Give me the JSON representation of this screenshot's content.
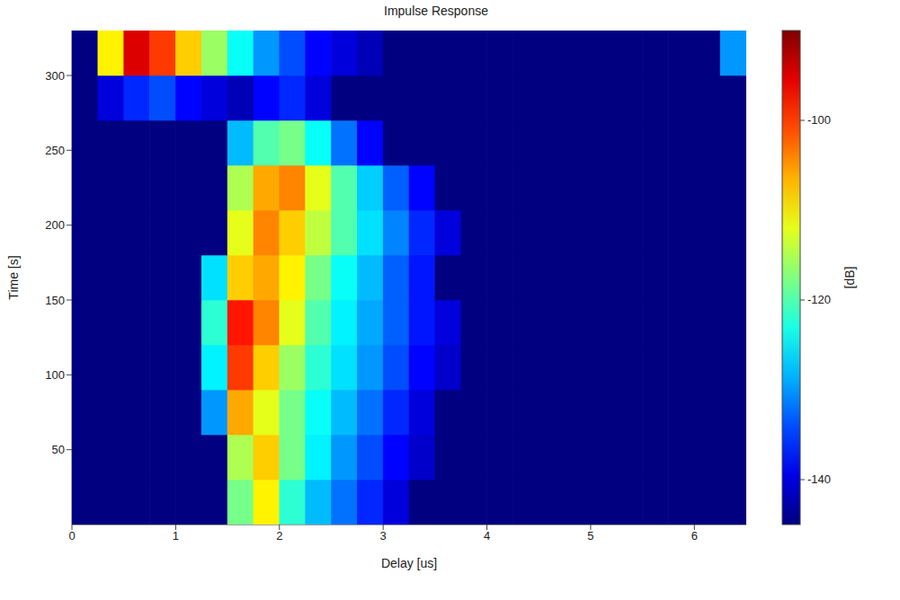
{
  "chart_data": {
    "type": "heatmap",
    "title": "Impulse Response",
    "x_label": "Delay [us]",
    "y_label": "Time [s]",
    "z_label": "[dB]",
    "x": [
      0.125,
      0.375,
      0.625,
      0.875,
      1.125,
      1.375,
      1.625,
      1.875,
      2.125,
      2.375,
      2.625,
      2.875,
      3.125,
      3.375,
      3.625,
      3.875,
      4.125,
      4.375,
      4.625,
      4.875,
      5.125,
      5.375,
      5.625,
      5.875,
      6.125,
      6.375
    ],
    "y": [
      15,
      45,
      75,
      105,
      135,
      165,
      195,
      225,
      255,
      285,
      315
    ],
    "z": [
      [
        -145,
        -145,
        -145,
        -145,
        -145,
        -145,
        -118,
        -110,
        -122,
        -128,
        -132,
        -136,
        -140,
        -145,
        -145,
        -145,
        -145,
        -145,
        -145,
        -145,
        -145,
        -145,
        -145,
        -145,
        -145,
        -145
      ],
      [
        -145,
        -145,
        -145,
        -145,
        -145,
        -145,
        -115,
        -108,
        -118,
        -125,
        -130,
        -134,
        -138,
        -141,
        -145,
        -145,
        -145,
        -145,
        -145,
        -145,
        -145,
        -145,
        -145,
        -145,
        -145,
        -145
      ],
      [
        -145,
        -145,
        -145,
        -145,
        -145,
        -130,
        -106,
        -112,
        -118,
        -124,
        -128,
        -132,
        -136,
        -140,
        -145,
        -145,
        -145,
        -145,
        -145,
        -145,
        -145,
        -145,
        -145,
        -145,
        -145,
        -145
      ],
      [
        -145,
        -145,
        -145,
        -145,
        -145,
        -125,
        -100,
        -108,
        -116,
        -122,
        -126,
        -130,
        -134,
        -138,
        -141,
        -145,
        -145,
        -145,
        -145,
        -145,
        -145,
        -145,
        -145,
        -145,
        -145,
        -145
      ],
      [
        -145,
        -145,
        -145,
        -145,
        -145,
        -122,
        -98,
        -104,
        -112,
        -120,
        -125,
        -129,
        -133,
        -137,
        -140,
        -145,
        -145,
        -145,
        -145,
        -145,
        -145,
        -145,
        -145,
        -145,
        -145,
        -145
      ],
      [
        -145,
        -145,
        -145,
        -145,
        -145,
        -126,
        -108,
        -106,
        -110,
        -118,
        -124,
        -128,
        -133,
        -137,
        -145,
        -145,
        -145,
        -145,
        -145,
        -145,
        -145,
        -145,
        -145,
        -145,
        -145,
        -145
      ],
      [
        -145,
        -145,
        -145,
        -145,
        -145,
        -145,
        -112,
        -104,
        -108,
        -114,
        -120,
        -126,
        -131,
        -136,
        -140,
        -145,
        -145,
        -145,
        -145,
        -145,
        -145,
        -145,
        -145,
        -145,
        -145,
        -145
      ],
      [
        -145,
        -145,
        -145,
        -145,
        -145,
        -145,
        -115,
        -106,
        -104,
        -112,
        -120,
        -127,
        -133,
        -138,
        -145,
        -145,
        -145,
        -145,
        -145,
        -145,
        -145,
        -145,
        -145,
        -145,
        -145,
        -145
      ],
      [
        -145,
        -145,
        -145,
        -145,
        -145,
        -145,
        -128,
        -120,
        -118,
        -124,
        -132,
        -138,
        -145,
        -145,
        -145,
        -145,
        -145,
        -145,
        -145,
        -145,
        -145,
        -145,
        -145,
        -145,
        -145,
        -145
      ],
      [
        -145,
        -140,
        -136,
        -134,
        -138,
        -140,
        -142,
        -138,
        -136,
        -140,
        -145,
        -145,
        -145,
        -145,
        -145,
        -145,
        -145,
        -145,
        -145,
        -145,
        -145,
        -145,
        -145,
        -145,
        -145,
        -145
      ],
      [
        -145,
        -110,
        -95,
        -100,
        -108,
        -116,
        -124,
        -130,
        -134,
        -138,
        -140,
        -142,
        -145,
        -145,
        -145,
        -145,
        -145,
        -145,
        -145,
        -145,
        -145,
        -145,
        -145,
        -145,
        -145,
        -130
      ]
    ],
    "xlim": [
      0,
      6.5
    ],
    "xticks": [
      0,
      1,
      2,
      3,
      4,
      5,
      6
    ],
    "ylim": [
      0,
      330
    ],
    "yticks": [
      50,
      100,
      150,
      200,
      250,
      300
    ],
    "zlim": [
      -145,
      -90
    ],
    "zticks": [
      -140,
      -120,
      -100
    ]
  }
}
